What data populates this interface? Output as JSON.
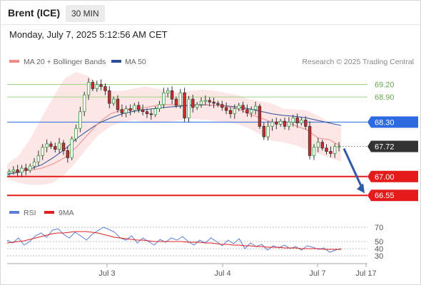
{
  "header": {
    "instrument": "Brent (ICE)",
    "timeframe": "30 MIN",
    "datetime": "Monday, July 7, 2025 5:12:56 AM CET"
  },
  "legend": {
    "ma20_label": "MA 20 + Bollinger Bands",
    "ma50_label": "MA 50",
    "credit": "Research © 2025 Trading Central",
    "colors": {
      "ma20": "#f08a8a",
      "ma50": "#2c4f95",
      "band_fill": "#fde3e3"
    }
  },
  "chart_data": [
    {
      "type": "candlestick",
      "title": "",
      "ylim": [
        66.4,
        69.55
      ],
      "x_ticks": [
        "Jul 3",
        "Jul 4",
        "Jul 7",
        "Jul 17"
      ],
      "horizontal_levels": [
        {
          "value": 69.2,
          "label": "69.20",
          "role": "resistance",
          "color": "#9dd47f"
        },
        {
          "value": 68.9,
          "label": "68.90",
          "role": "resistance",
          "color": "#9dd47f"
        },
        {
          "value": 68.3,
          "label": "68.30",
          "role": "pivot",
          "color": "#2d6ae0"
        },
        {
          "value": 67.72,
          "label": "67.72",
          "role": "last",
          "color": "#333333"
        },
        {
          "value": 67.0,
          "label": "67.00",
          "role": "support",
          "color": "#e41b1b"
        },
        {
          "value": 66.55,
          "label": "66.55",
          "role": "support",
          "color": "#e41b1b"
        }
      ],
      "projection": {
        "from": 67.72,
        "to": 66.55,
        "direction": "down",
        "color": "#2f5aa8"
      },
      "close_path": [
        67.12,
        67.16,
        67.1,
        67.2,
        67.15,
        67.25,
        67.35,
        67.5,
        67.7,
        67.78,
        67.72,
        67.65,
        67.8,
        67.62,
        67.45,
        67.9,
        68.15,
        68.55,
        68.95,
        69.25,
        69.1,
        69.2,
        69.15,
        69.05,
        68.75,
        68.85,
        68.6,
        68.52,
        68.62,
        68.58,
        68.7,
        68.6,
        68.55,
        68.5,
        68.48,
        68.62,
        68.72,
        69.0,
        69.05,
        68.85,
        68.7,
        69.0,
        68.4,
        68.85,
        68.65,
        68.72,
        68.8,
        68.82,
        68.78,
        68.75,
        68.72,
        68.65,
        68.58,
        68.5,
        68.62,
        68.7,
        68.6,
        68.52,
        68.6,
        68.68,
        68.2,
        67.95,
        68.2,
        68.3,
        68.25,
        68.32,
        68.2,
        68.3,
        68.4,
        68.28,
        68.35,
        68.2,
        67.5,
        67.7,
        67.82,
        67.68,
        67.6,
        67.55,
        67.72,
        67.72
      ],
      "ma20": [
        67.1,
        67.12,
        67.15,
        67.2,
        67.3,
        67.45,
        67.7,
        68.0,
        68.3,
        68.5,
        68.6,
        68.62,
        68.65,
        68.7,
        68.72,
        68.7,
        68.72,
        68.72,
        68.7,
        68.68,
        68.62,
        68.5,
        68.4,
        68.3,
        68.32,
        68.22,
        68.12,
        67.92,
        67.88,
        67.72
      ],
      "ma50": [
        67.05,
        67.1,
        67.18,
        67.28,
        67.45,
        67.65,
        67.9,
        68.1,
        68.28,
        68.4,
        68.5,
        68.56,
        68.6,
        68.63,
        68.66,
        68.68,
        68.7,
        68.71,
        68.7,
        68.69,
        68.66,
        68.62,
        68.56,
        68.5,
        68.46,
        68.44,
        68.4,
        68.34,
        68.28,
        68.22
      ],
      "bollinger_upper": [
        67.3,
        67.5,
        67.9,
        68.4,
        68.9,
        69.35,
        69.5,
        69.4,
        69.2,
        69.05,
        69.05,
        69.1,
        69.15,
        69.1,
        69.05,
        69.0,
        69.05,
        69.08,
        69.05,
        69.0,
        68.95,
        68.85,
        68.8,
        68.75,
        68.62,
        68.6,
        68.58,
        68.45,
        68.3,
        68.18
      ],
      "bollinger_lower": [
        66.95,
        66.85,
        66.8,
        66.8,
        66.85,
        67.05,
        67.35,
        67.7,
        68.0,
        68.2,
        68.3,
        68.35,
        68.3,
        68.28,
        68.3,
        68.35,
        68.38,
        68.36,
        68.33,
        68.3,
        68.25,
        68.15,
        68.0,
        67.85,
        67.82,
        67.75,
        67.65,
        67.55,
        67.45,
        67.35
      ]
    },
    {
      "type": "line",
      "title": "",
      "legend": [
        "RSI",
        "9MA"
      ],
      "colors": {
        "rsi": "#5b7fd6",
        "ma9": "#e02020"
      },
      "ylim": [
        25,
        75
      ],
      "y_ticks": [
        70,
        50,
        40,
        30
      ],
      "rsi": [
        52,
        48,
        55,
        45,
        50,
        58,
        62,
        56,
        66,
        68,
        60,
        55,
        63,
        58,
        52,
        60,
        65,
        70,
        67,
        63,
        55,
        52,
        58,
        48,
        55,
        50,
        45,
        53,
        49,
        55,
        52,
        57,
        50,
        45,
        52,
        48,
        55,
        50,
        44,
        52,
        47,
        54,
        40,
        48,
        43,
        46,
        38,
        44,
        41,
        45,
        40,
        43,
        38,
        44,
        42,
        39,
        41,
        35,
        38,
        40
      ],
      "ma9": [
        48,
        49,
        50,
        51,
        53,
        55,
        57,
        59,
        61,
        62,
        62,
        63,
        64,
        64,
        64,
        63,
        62,
        60,
        58,
        56,
        55,
        54,
        53,
        52,
        52,
        51,
        50,
        50,
        50,
        50,
        50,
        50,
        49,
        49,
        49,
        48,
        48,
        47,
        46,
        46,
        45,
        45,
        44,
        44,
        43,
        43,
        42,
        42,
        42,
        41,
        41,
        41,
        40,
        40,
        40,
        40,
        39,
        39,
        39,
        39
      ]
    }
  ]
}
